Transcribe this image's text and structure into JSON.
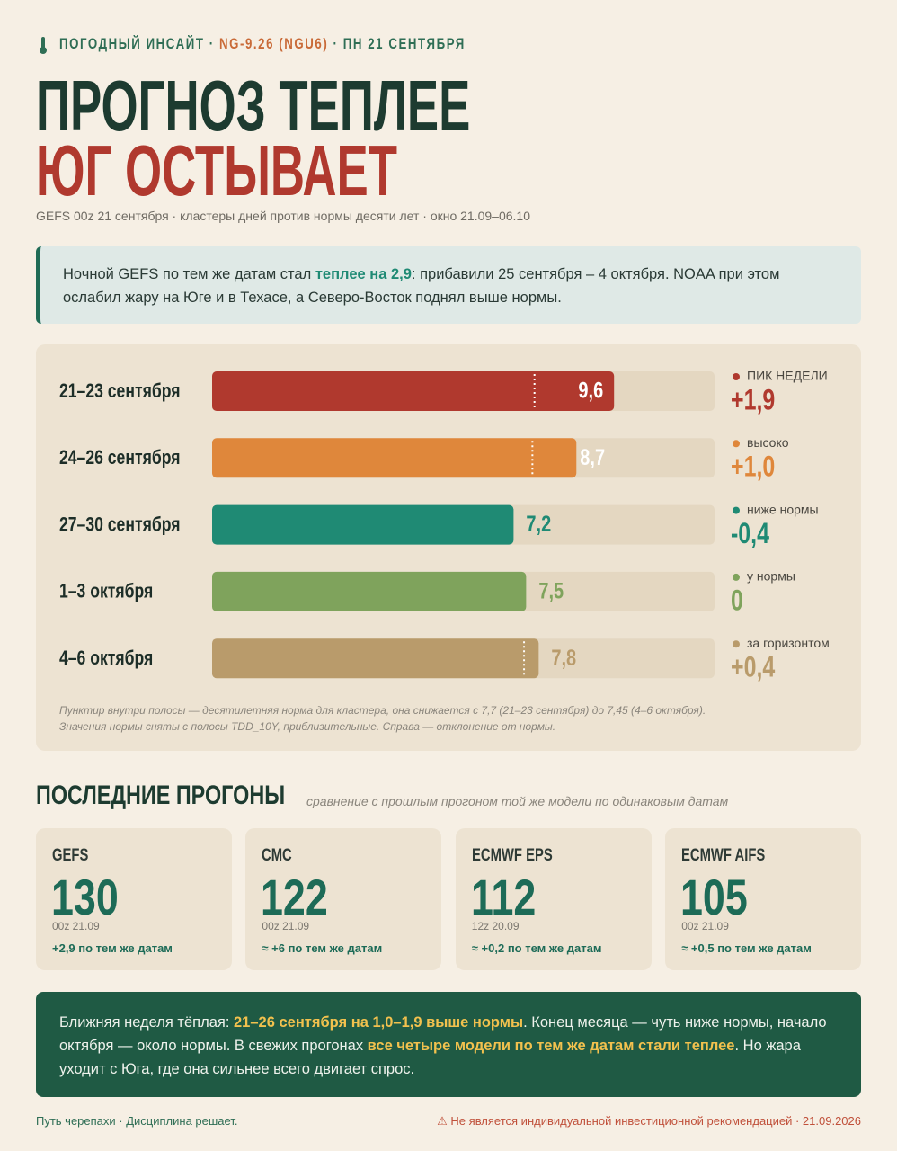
{
  "header": {
    "kicker": [
      "ПОГОДНЫЙ ИНСАЙТ ·",
      "NG-9.26 (NGU6)",
      "· ПН 21 СЕНТЯБРЯ"
    ],
    "title": [
      "ПРОГНОЗ ТЕПЛЕЕ",
      "ЮГ ОСТЫВАЕТ"
    ],
    "subtitle": "GEFS 00z 21 сентября · кластеры дней против нормы десяти лет · окно 21.09–06.10"
  },
  "callout": [
    "Ночной GEFS по тем же датам стал ",
    "теплее на 2,9",
    ": прибавили 25 сентября – 4 октября. NOAA при этом ослабил жару на Юге и в Техасе, а Северо-Восток поднял выше нормы."
  ],
  "chart_data": {
    "type": "bar",
    "orientation": "horizontal",
    "categories": [
      "21–23 сентября",
      "24–26 сентября",
      "27–30 сентября",
      "1–3 октября",
      "4–6 октября"
    ],
    "values": [
      9.6,
      8.7,
      7.2,
      7.5,
      7.8
    ],
    "value_labels": [
      "9,6",
      "8,7",
      "7,2",
      "7,5",
      "7,8"
    ],
    "colors": [
      "#b0392e",
      "#df873b",
      "#1f8a74",
      "#7fa35c",
      "#b99b6b"
    ],
    "xlim": [
      0,
      12
    ],
    "norm": [
      7.7,
      7.65,
      null,
      null,
      7.45
    ],
    "status": [
      "ПИК НЕДЕЛИ",
      "высоко",
      "ниже нормы",
      "у нормы",
      "за горизонтом"
    ],
    "deviation_labels": [
      "+1,9",
      "+1,0",
      "-0,4",
      "0",
      "+0,4"
    ],
    "note": [
      "Пунктир внутри полосы — десятилетняя норма для кластера, она снижается с 7,7 (21–23 сентября) до 7,45 (4–6 октября).",
      "Значения нормы сняты с полосы TDD_10Y, приблизительные. Справа — отклонение от нормы."
    ]
  },
  "runs": {
    "title": "ПОСЛЕДНИЕ ПРОГОНЫ",
    "subtitle": "сравнение с прошлым прогоном той же модели по одинаковым датам",
    "cards": [
      {
        "name": "GEFS",
        "value": 130,
        "run": "00z 21.09",
        "delta": "+2,9 по тем же датам"
      },
      {
        "name": "CMC",
        "value": 122,
        "run": "00z 21.09",
        "delta": "≈ +6 по тем же датам"
      },
      {
        "name": "ECMWF EPS",
        "value": 112,
        "run": "12z 20.09",
        "delta": "≈ +0,2 по тем же датам"
      },
      {
        "name": "ECMWF AIFS",
        "value": 105,
        "run": "00z 21.09",
        "delta": "≈ +0,5 по тем же датам"
      }
    ]
  },
  "summary": [
    "Ближняя неделя тёплая: ",
    "21–26 сентября на 1,0–1,9 выше нормы",
    ". Конец месяца — чуть ниже нормы, начало октября — около нормы. В свежих прогонах ",
    "все четыре модели по тем же датам стали теплее",
    ". Но жара уходит с Юга, где она сильнее всего двигает спрос."
  ],
  "footer": {
    "left": "Путь черепахи · Дисциплина решает.",
    "right": "⚠ Не является индивидуальной инвестиционной рекомендацией · 21.09.2026"
  }
}
